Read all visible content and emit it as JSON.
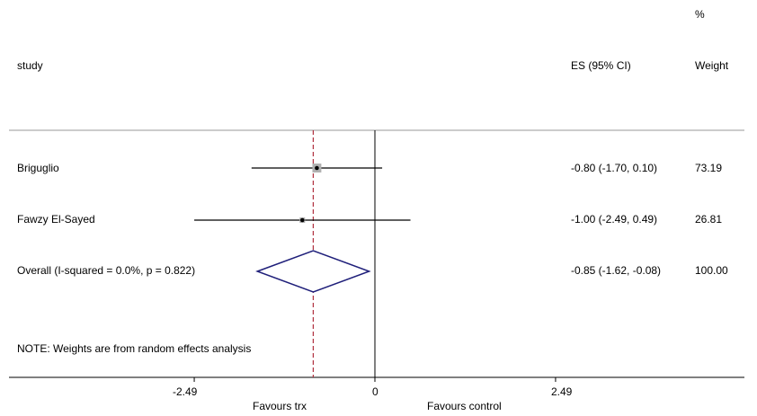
{
  "header": {
    "col_study": "study",
    "col_es": "ES (95% CI)",
    "col_weight_pct": "%",
    "col_weight": "Weight"
  },
  "studies": [
    {
      "name": "Briguglio",
      "es_text": "-0.80 (-1.70, 0.10)",
      "weight_text": "73.19"
    },
    {
      "name": "Fawzy El-Sayed",
      "es_text": "-1.00 (-2.49, 0.49)",
      "weight_text": "26.81"
    }
  ],
  "overall": {
    "name": "Overall  (I-squared = 0.0%, p = 0.822)",
    "es_text": "-0.85 (-1.62, -0.08)",
    "weight_text": "100.00"
  },
  "note": "NOTE: Weights are from random effects analysis",
  "axis": {
    "ticks": [
      "-2.49",
      "0",
      "2.49"
    ],
    "left_label": "Favours trx",
    "right_label": "Favours control"
  },
  "colors": {
    "line": "#000000",
    "diamond": "#1f1f7a",
    "ref_line": "#b0303f",
    "box": "#b0b0b0"
  },
  "chart_data": {
    "type": "forest",
    "xlim": [
      -2.49,
      2.49
    ],
    "xticks": [
      -2.49,
      0,
      2.49
    ],
    "null_value": 0,
    "pooled_estimate": -0.85,
    "studies": [
      {
        "name": "Briguglio",
        "es": -0.8,
        "ci": [
          -1.7,
          0.1
        ],
        "weight": 73.19
      },
      {
        "name": "Fawzy El-Sayed",
        "es": -1.0,
        "ci": [
          -2.49,
          0.49
        ],
        "weight": 26.81
      }
    ],
    "overall": {
      "es": -0.85,
      "ci": [
        -1.62,
        -0.08
      ],
      "weight": 100.0,
      "i_squared": "0.0%",
      "p": "0.822"
    }
  }
}
